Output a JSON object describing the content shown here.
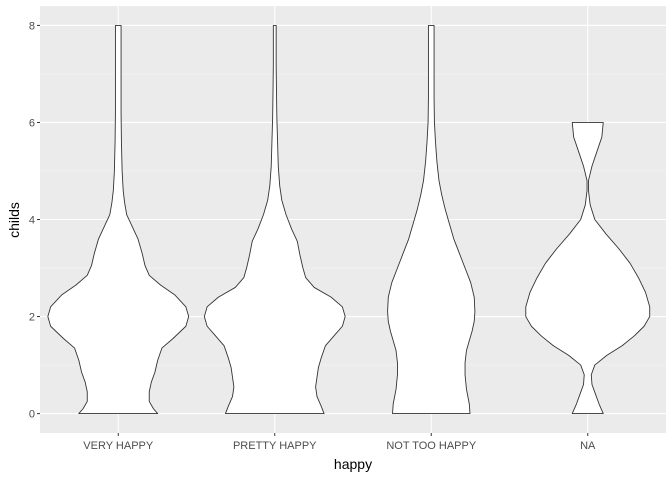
{
  "chart_data": {
    "type": "violin",
    "xlabel": "happy",
    "ylabel": "childs",
    "ylim": [
      -0.4,
      8.4
    ],
    "yticks": [
      0,
      2,
      4,
      6,
      8
    ],
    "ytick_labels": [
      "0",
      "2",
      "4",
      "6",
      "8"
    ],
    "minor_yticks": [
      1,
      3,
      5,
      7
    ],
    "categories": [
      "VERY HAPPY",
      "PRETTY HAPPY",
      "NOT TOO HAPPY",
      "NA"
    ],
    "series": [
      {
        "category": "VERY HAPPY",
        "profile": [
          [
            0,
            0.56
          ],
          [
            0.1,
            0.5
          ],
          [
            0.25,
            0.44
          ],
          [
            0.45,
            0.44
          ],
          [
            0.65,
            0.47
          ],
          [
            0.85,
            0.52
          ],
          [
            1.1,
            0.56
          ],
          [
            1.35,
            0.62
          ],
          [
            1.55,
            0.78
          ],
          [
            1.8,
            0.96
          ],
          [
            2.0,
            1.0
          ],
          [
            2.2,
            0.96
          ],
          [
            2.45,
            0.8
          ],
          [
            2.65,
            0.6
          ],
          [
            2.85,
            0.44
          ],
          [
            3.05,
            0.38
          ],
          [
            3.3,
            0.34
          ],
          [
            3.6,
            0.28
          ],
          [
            3.85,
            0.2
          ],
          [
            4.1,
            0.12
          ],
          [
            4.35,
            0.09
          ],
          [
            4.6,
            0.07
          ],
          [
            5.0,
            0.055
          ],
          [
            5.6,
            0.045
          ],
          [
            6.2,
            0.04
          ],
          [
            6.6,
            0.04
          ],
          [
            7.0,
            0.04
          ],
          [
            7.5,
            0.04
          ],
          [
            8.0,
            0.04
          ]
        ]
      },
      {
        "category": "PRETTY HAPPY",
        "profile": [
          [
            0,
            0.7
          ],
          [
            0.15,
            0.66
          ],
          [
            0.35,
            0.6
          ],
          [
            0.55,
            0.58
          ],
          [
            0.75,
            0.6
          ],
          [
            0.95,
            0.62
          ],
          [
            1.15,
            0.66
          ],
          [
            1.4,
            0.72
          ],
          [
            1.6,
            0.84
          ],
          [
            1.8,
            0.96
          ],
          [
            2.0,
            1.0
          ],
          [
            2.2,
            0.96
          ],
          [
            2.4,
            0.8
          ],
          [
            2.6,
            0.56
          ],
          [
            2.8,
            0.44
          ],
          [
            3.0,
            0.4
          ],
          [
            3.25,
            0.36
          ],
          [
            3.55,
            0.32
          ],
          [
            3.8,
            0.24
          ],
          [
            4.1,
            0.16
          ],
          [
            4.4,
            0.1
          ],
          [
            4.7,
            0.07
          ],
          [
            5.1,
            0.05
          ],
          [
            5.6,
            0.04
          ],
          [
            6.1,
            0.03
          ],
          [
            6.6,
            0.025
          ],
          [
            7.2,
            0.02
          ],
          [
            7.7,
            0.02
          ],
          [
            8.0,
            0.02
          ]
        ]
      },
      {
        "category": "NOT TOO HAPPY",
        "profile": [
          [
            0,
            0.55
          ],
          [
            0.2,
            0.54
          ],
          [
            0.5,
            0.5
          ],
          [
            0.8,
            0.48
          ],
          [
            1.05,
            0.48
          ],
          [
            1.3,
            0.5
          ],
          [
            1.5,
            0.54
          ],
          [
            1.7,
            0.58
          ],
          [
            1.9,
            0.61
          ],
          [
            2.1,
            0.62
          ],
          [
            2.4,
            0.61
          ],
          [
            2.7,
            0.56
          ],
          [
            3.0,
            0.48
          ],
          [
            3.3,
            0.4
          ],
          [
            3.6,
            0.32
          ],
          [
            3.9,
            0.26
          ],
          [
            4.2,
            0.2
          ],
          [
            4.5,
            0.15
          ],
          [
            4.8,
            0.11
          ],
          [
            5.2,
            0.08
          ],
          [
            5.6,
            0.06
          ],
          [
            6.0,
            0.045
          ],
          [
            6.5,
            0.04
          ],
          [
            7.0,
            0.04
          ],
          [
            7.5,
            0.04
          ],
          [
            8.0,
            0.04
          ]
        ]
      },
      {
        "category": "NA",
        "profile": [
          [
            0,
            0.22
          ],
          [
            0.2,
            0.16
          ],
          [
            0.4,
            0.11
          ],
          [
            0.6,
            0.06
          ],
          [
            0.8,
            0.05
          ],
          [
            1.0,
            0.1
          ],
          [
            1.2,
            0.27
          ],
          [
            1.4,
            0.49
          ],
          [
            1.6,
            0.66
          ],
          [
            1.8,
            0.8
          ],
          [
            2.0,
            0.88
          ],
          [
            2.2,
            0.88
          ],
          [
            2.5,
            0.82
          ],
          [
            2.8,
            0.72
          ],
          [
            3.1,
            0.6
          ],
          [
            3.4,
            0.44
          ],
          [
            3.7,
            0.26
          ],
          [
            4.0,
            0.1
          ],
          [
            4.3,
            0.035
          ],
          [
            4.6,
            0.01
          ],
          [
            4.8,
            0.01
          ],
          [
            5.1,
            0.06
          ],
          [
            5.4,
            0.13
          ],
          [
            5.7,
            0.2
          ],
          [
            6.0,
            0.22
          ]
        ]
      }
    ]
  }
}
